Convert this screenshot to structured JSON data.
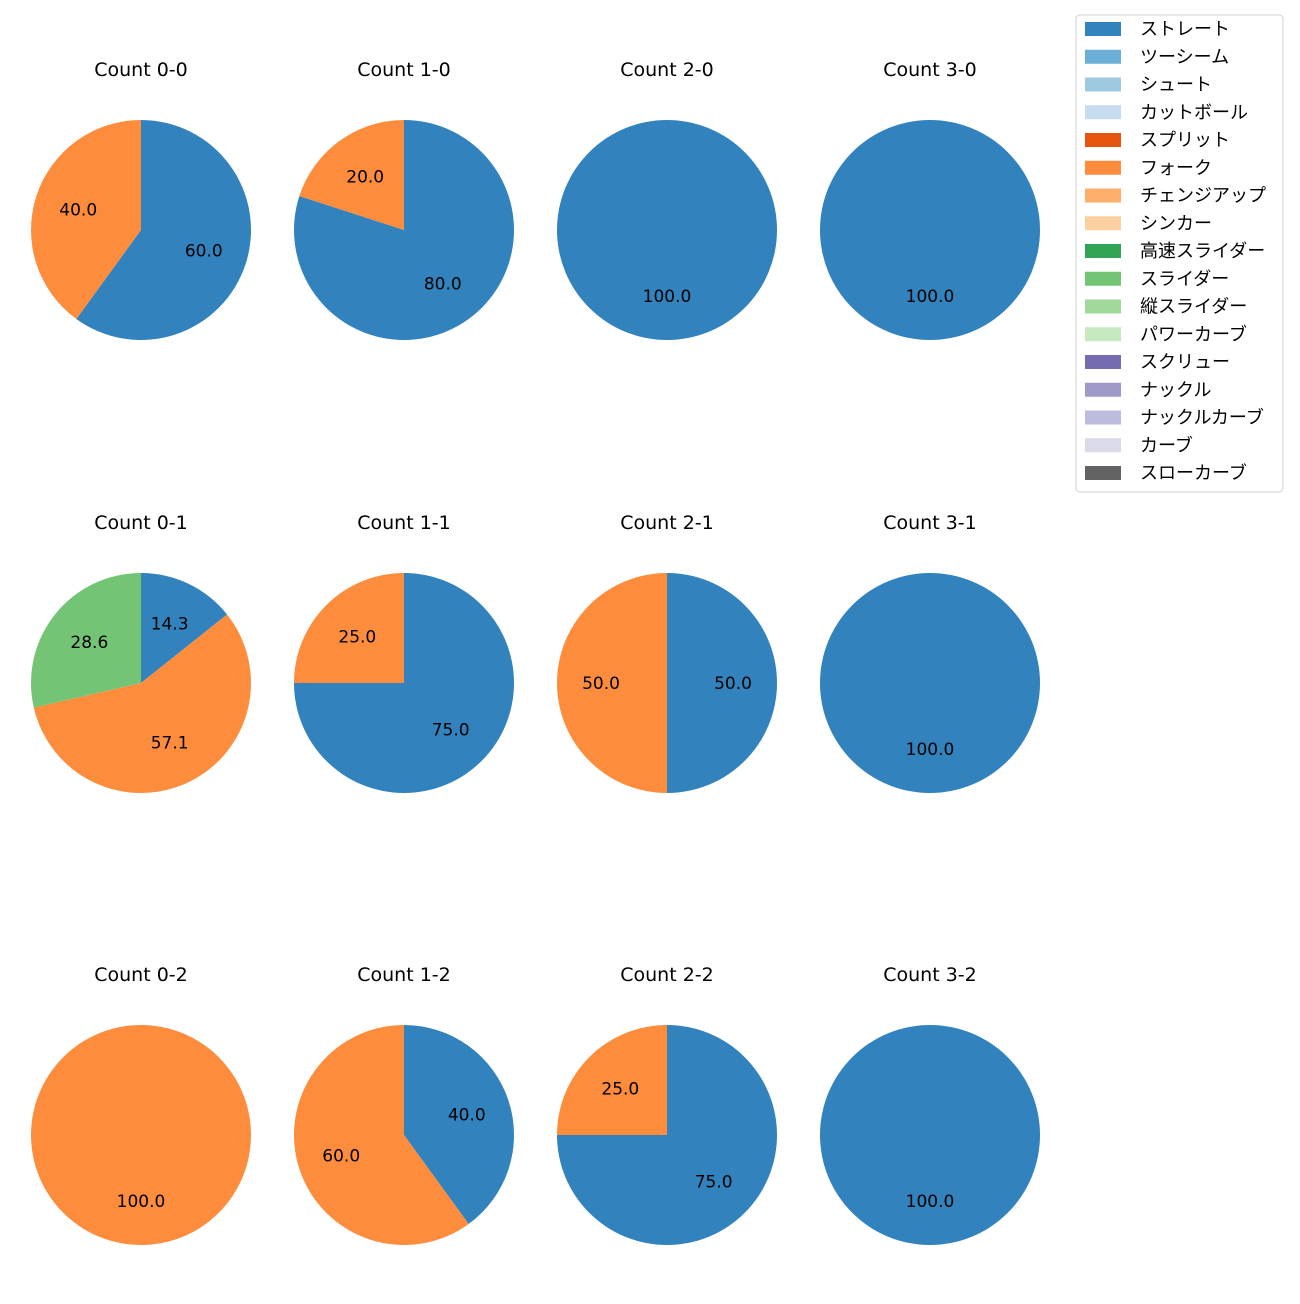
{
  "chart_data": {
    "type": "pie",
    "legend": {
      "placement": "top-right",
      "entries": [
        {
          "name": "ストレート",
          "color": "#3182bd"
        },
        {
          "name": "ツーシーム",
          "color": "#6baed6"
        },
        {
          "name": "シュート",
          "color": "#9ecae1"
        },
        {
          "name": "カットボール",
          "color": "#c6dbef"
        },
        {
          "name": "スプリット",
          "color": "#e6550d"
        },
        {
          "name": "フォーク",
          "color": "#fd8d3c"
        },
        {
          "name": "チェンジアップ",
          "color": "#fdae6b"
        },
        {
          "name": "シンカー",
          "color": "#fdd0a2"
        },
        {
          "name": "高速スライダー",
          "color": "#31a354"
        },
        {
          "name": "スライダー",
          "color": "#74c476"
        },
        {
          "name": "縦スライダー",
          "color": "#a1d99b"
        },
        {
          "name": "パワーカーブ",
          "color": "#c7e9c0"
        },
        {
          "name": "スクリュー",
          "color": "#756bb1"
        },
        {
          "name": "ナックル",
          "color": "#9e9ac8"
        },
        {
          "name": "ナックルカーブ",
          "color": "#bcbddc"
        },
        {
          "name": "カーブ",
          "color": "#dadaeb"
        },
        {
          "name": "スローカーブ",
          "color": "#636363"
        }
      ]
    },
    "pies": [
      {
        "title": "Count 0-0",
        "slices": [
          {
            "pitch": "ストレート",
            "value": 60.0,
            "label": "60.0"
          },
          {
            "pitch": "フォーク",
            "value": 40.0,
            "label": "40.0"
          }
        ]
      },
      {
        "title": "Count 1-0",
        "slices": [
          {
            "pitch": "ストレート",
            "value": 80.0,
            "label": "80.0"
          },
          {
            "pitch": "フォーク",
            "value": 20.0,
            "label": "20.0"
          }
        ]
      },
      {
        "title": "Count 2-0",
        "slices": [
          {
            "pitch": "ストレート",
            "value": 100.0,
            "label": "100.0"
          }
        ]
      },
      {
        "title": "Count 3-0",
        "slices": [
          {
            "pitch": "ストレート",
            "value": 100.0,
            "label": "100.0"
          }
        ]
      },
      {
        "title": "Count 0-1",
        "slices": [
          {
            "pitch": "ストレート",
            "value": 14.3,
            "label": "14.3"
          },
          {
            "pitch": "フォーク",
            "value": 57.1,
            "label": "57.1"
          },
          {
            "pitch": "スライダー",
            "value": 28.6,
            "label": "28.6"
          }
        ]
      },
      {
        "title": "Count 1-1",
        "slices": [
          {
            "pitch": "ストレート",
            "value": 75.0,
            "label": "75.0"
          },
          {
            "pitch": "フォーク",
            "value": 25.0,
            "label": "25.0"
          }
        ]
      },
      {
        "title": "Count 2-1",
        "slices": [
          {
            "pitch": "ストレート",
            "value": 50.0,
            "label": "50.0"
          },
          {
            "pitch": "フォーク",
            "value": 50.0,
            "label": "50.0"
          }
        ]
      },
      {
        "title": "Count 3-1",
        "slices": [
          {
            "pitch": "ストレート",
            "value": 100.0,
            "label": "100.0"
          }
        ]
      },
      {
        "title": "Count 0-2",
        "slices": [
          {
            "pitch": "フォーク",
            "value": 100.0,
            "label": "100.0"
          }
        ]
      },
      {
        "title": "Count 1-2",
        "slices": [
          {
            "pitch": "ストレート",
            "value": 40.0,
            "label": "40.0"
          },
          {
            "pitch": "フォーク",
            "value": 60.0,
            "label": "60.0"
          }
        ]
      },
      {
        "title": "Count 2-2",
        "slices": [
          {
            "pitch": "ストレート",
            "value": 75.0,
            "label": "75.0"
          },
          {
            "pitch": "フォーク",
            "value": 25.0,
            "label": "25.0"
          }
        ]
      },
      {
        "title": "Count 3-2",
        "slices": [
          {
            "pitch": "ストレート",
            "value": 100.0,
            "label": "100.0"
          }
        ]
      }
    ]
  }
}
